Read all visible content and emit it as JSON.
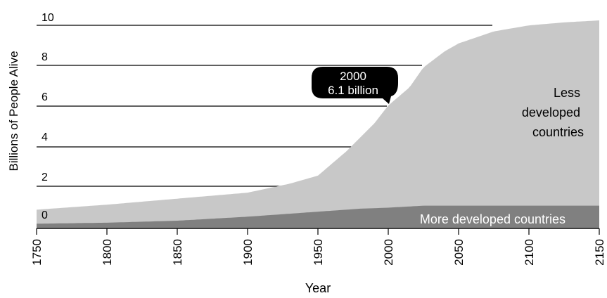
{
  "chart_data": {
    "type": "area",
    "xlabel": "Year",
    "ylabel": "Billions of People Alive",
    "xlim": [
      1750,
      2150
    ],
    "ylim": [
      0,
      10
    ],
    "x_ticks": [
      "1750",
      "1800",
      "1850",
      "1900",
      "1950",
      "2000",
      "2050",
      "2100",
      "2150"
    ],
    "y_ticks": [
      "0",
      "2",
      "4",
      "6",
      "8",
      "10"
    ],
    "grid": "horizontal lines at y tick values",
    "series": [
      {
        "name": "More developed countries",
        "color": "#808080",
        "x": [
          1750,
          1800,
          1850,
          1900,
          1930,
          1950,
          1980,
          2000,
          2025,
          2050,
          2075,
          2100,
          2125,
          2150
        ],
        "values": [
          0.2,
          0.25,
          0.35,
          0.55,
          0.7,
          0.8,
          0.95,
          1.0,
          1.1,
          1.1,
          1.1,
          1.1,
          1.1,
          1.1
        ]
      },
      {
        "name": "Less developed countries",
        "color": "#c8c8c8",
        "x": [
          1750,
          1800,
          1850,
          1900,
          1930,
          1950,
          1970,
          1990,
          2000,
          2015,
          2025,
          2040,
          2050,
          2075,
          2100,
          2125,
          2150
        ],
        "values": [
          0.9,
          1.15,
          1.45,
          1.75,
          2.2,
          2.6,
          3.8,
          5.2,
          6.1,
          7.0,
          8.0,
          8.8,
          9.2,
          9.8,
          10.1,
          10.25,
          10.35
        ]
      }
    ],
    "annotations": [
      {
        "line1": "2000",
        "line2": "6.1 billion",
        "x": 2000,
        "y": 6.1
      }
    ]
  }
}
